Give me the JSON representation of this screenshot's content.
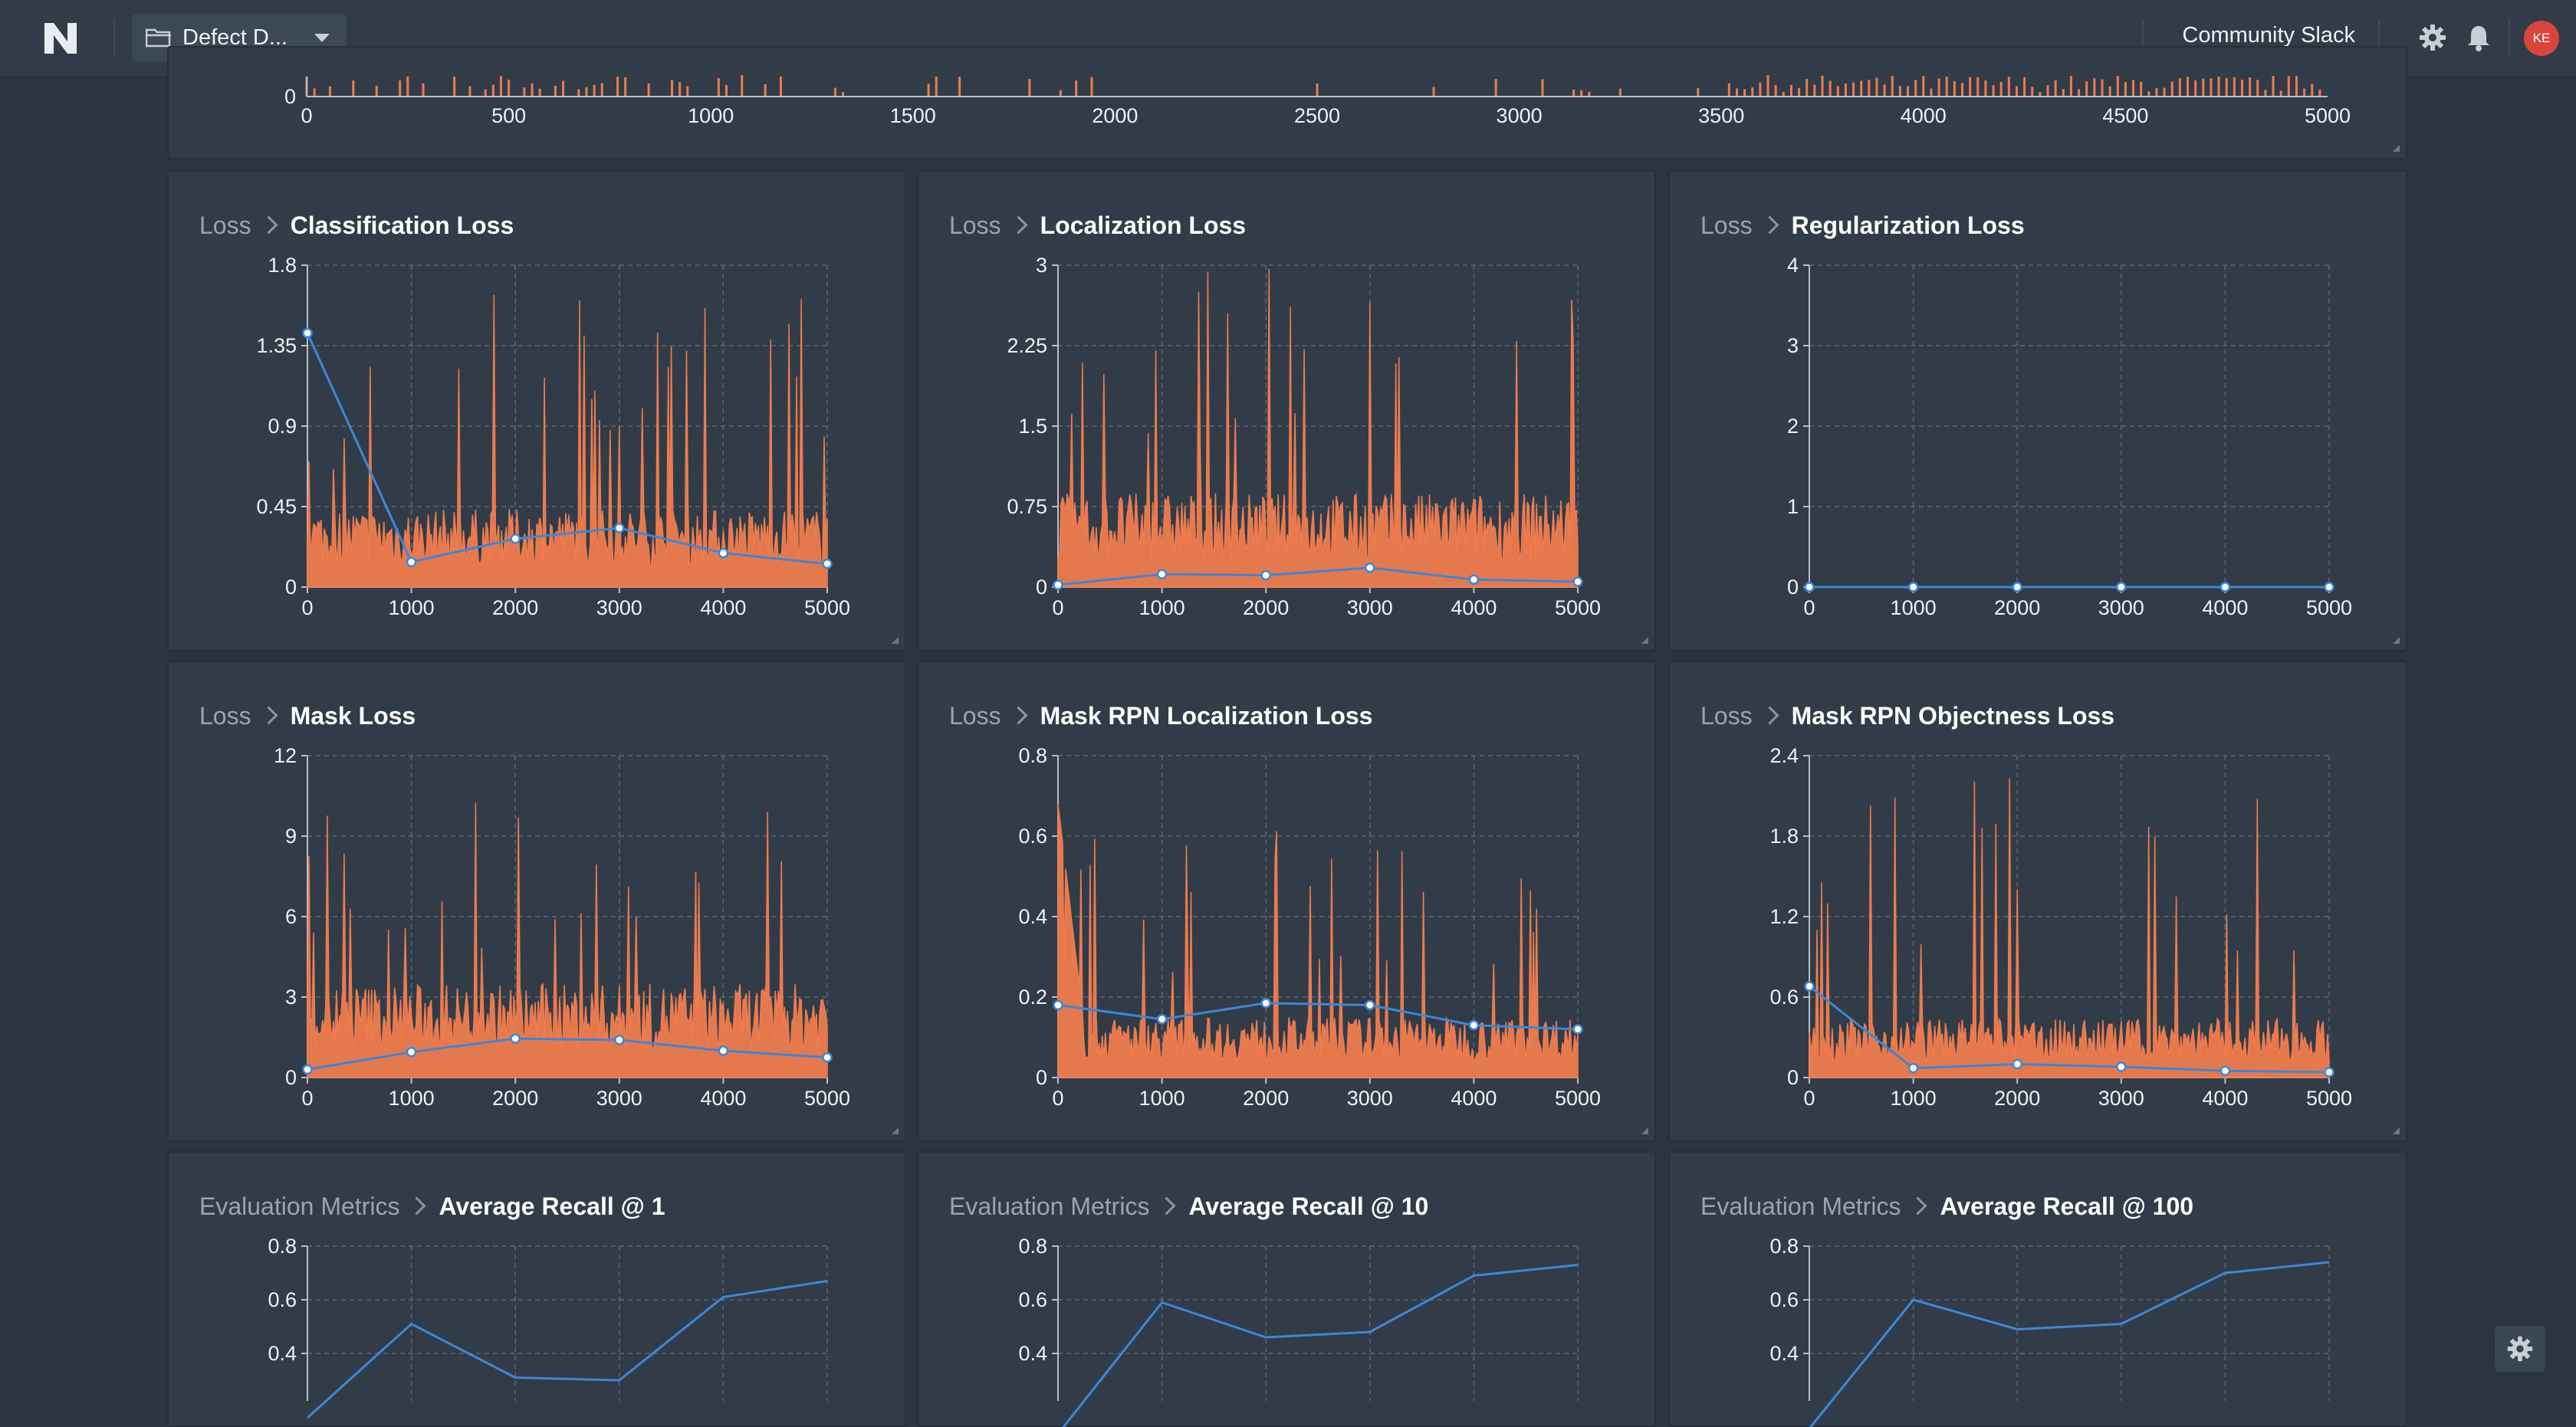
{
  "app": {
    "project_name": "Defect D...",
    "community_link": "Community Slack",
    "avatar_initials": "KE",
    "accent_color": "#ef7c4f",
    "series_color": "#3f86d6"
  },
  "top_chart": {
    "x_ticks": [
      "0",
      "500",
      "1000",
      "1500",
      "2000",
      "2500",
      "3000",
      "3500",
      "4000",
      "4500",
      "5000"
    ],
    "y_ticks": [
      "0"
    ]
  },
  "panels": [
    {
      "group": "Loss",
      "metric": "Classification Loss",
      "y_ticks": [
        "1.8",
        "1.35",
        "0.9",
        "0.45",
        "0"
      ],
      "x_ticks": [
        "0",
        "1000",
        "2000",
        "3000",
        "4000",
        "5000"
      ]
    },
    {
      "group": "Loss",
      "metric": "Localization Loss",
      "y_ticks": [
        "3",
        "2.25",
        "1.5",
        "0.75",
        "0"
      ],
      "x_ticks": [
        "0",
        "1000",
        "2000",
        "3000",
        "4000",
        "5000"
      ]
    },
    {
      "group": "Loss",
      "metric": "Regularization Loss",
      "y_ticks": [
        "4",
        "3",
        "2",
        "1",
        "0"
      ],
      "x_ticks": [
        "0",
        "1000",
        "2000",
        "3000",
        "4000",
        "5000"
      ]
    },
    {
      "group": "Loss",
      "metric": "Mask Loss",
      "y_ticks": [
        "12",
        "9",
        "6",
        "3",
        "0"
      ],
      "x_ticks": [
        "0",
        "1000",
        "2000",
        "3000",
        "4000",
        "5000"
      ]
    },
    {
      "group": "Loss",
      "metric": "Mask RPN Localization Loss",
      "y_ticks": [
        "0.8",
        "0.6",
        "0.4",
        "0.2",
        "0"
      ],
      "x_ticks": [
        "0",
        "1000",
        "2000",
        "3000",
        "4000",
        "5000"
      ]
    },
    {
      "group": "Loss",
      "metric": "Mask RPN Objectness Loss",
      "y_ticks": [
        "2.4",
        "1.8",
        "1.2",
        "0.6",
        "0"
      ],
      "x_ticks": [
        "0",
        "1000",
        "2000",
        "3000",
        "4000",
        "5000"
      ]
    },
    {
      "group": "Evaluation Metrics",
      "metric": "Average Recall @ 1",
      "y_ticks": [
        "0.8",
        "0.6",
        "0.4"
      ],
      "x_ticks": []
    },
    {
      "group": "Evaluation Metrics",
      "metric": "Average Recall @ 10",
      "y_ticks": [
        "0.8",
        "0.6",
        "0.4"
      ],
      "x_ticks": []
    },
    {
      "group": "Evaluation Metrics",
      "metric": "Average Recall @ 100",
      "y_ticks": [
        "0.8",
        "0.6",
        "0.4"
      ],
      "x_ticks": []
    }
  ],
  "chart_data": [
    {
      "type": "area",
      "x": [
        0,
        5000
      ],
      "ylim": [
        0,
        null
      ],
      "xlim": [
        0,
        5000
      ],
      "grid": false
    },
    {
      "type": "line",
      "title": "Classification Loss",
      "xlim": [
        0,
        5000
      ],
      "ylim": [
        0,
        1.8
      ],
      "grid": true,
      "x": [
        0,
        1000,
        2000,
        3000,
        4000,
        5000
      ],
      "series": [
        {
          "values": [
            1.42,
            0.14,
            0.27,
            0.33,
            0.19,
            0.13
          ]
        }
      ],
      "raw_peak": 1.65,
      "raw_level": 0.35
    },
    {
      "type": "line",
      "title": "Localization Loss",
      "xlim": [
        0,
        5000
      ],
      "ylim": [
        0,
        3
      ],
      "grid": true,
      "x": [
        0,
        1000,
        2000,
        3000,
        4000,
        5000
      ],
      "series": [
        {
          "values": [
            0.02,
            0.12,
            0.11,
            0.18,
            0.07,
            0.05
          ]
        }
      ],
      "raw_peak": 3.0,
      "raw_level": 0.7
    },
    {
      "type": "line",
      "title": "Regularization Loss",
      "xlim": [
        0,
        5000
      ],
      "ylim": [
        0,
        4
      ],
      "grid": true,
      "x": [
        0,
        1000,
        2000,
        3000,
        4000,
        5000
      ],
      "series": [
        {
          "values": [
            0,
            0,
            0,
            0,
            0,
            0
          ]
        }
      ]
    },
    {
      "type": "line",
      "title": "Mask Loss",
      "xlim": [
        0,
        5000
      ],
      "ylim": [
        0,
        12
      ],
      "grid": true,
      "x": [
        0,
        1000,
        2000,
        3000,
        4000,
        5000
      ],
      "series": [
        {
          "values": [
            0.3,
            0.95,
            1.45,
            1.4,
            1.0,
            0.75
          ]
        }
      ],
      "raw_peak": 10.8,
      "raw_level": 2.8
    },
    {
      "type": "line",
      "title": "Mask RPN Localization Loss",
      "xlim": [
        0,
        5000
      ],
      "ylim": [
        0,
        0.8
      ],
      "grid": true,
      "x": [
        0,
        1000,
        2000,
        3000,
        4000,
        5000
      ],
      "series": [
        {
          "values": [
            0.18,
            0.145,
            0.185,
            0.18,
            0.13,
            0.12
          ]
        }
      ],
      "raw_peak": 0.62,
      "raw_level": 0.12
    },
    {
      "type": "line",
      "title": "Mask RPN Objectness Loss",
      "xlim": [
        0,
        5000
      ],
      "ylim": [
        0,
        2.4
      ],
      "grid": true,
      "x": [
        0,
        1000,
        2000,
        3000,
        4000,
        5000
      ],
      "series": [
        {
          "values": [
            0.68,
            0.07,
            0.1,
            0.08,
            0.05,
            0.04
          ]
        }
      ],
      "raw_peak": 2.3,
      "raw_level": 0.35
    },
    {
      "type": "line",
      "title": "Average Recall @ 1",
      "ylim": [
        0.2,
        0.8
      ],
      "grid": true,
      "x": [
        0,
        1000,
        2000,
        3000,
        4000,
        5000
      ],
      "series": [
        {
          "values": [
            0.16,
            0.51,
            0.31,
            0.3,
            0.61,
            0.67
          ]
        }
      ]
    },
    {
      "type": "line",
      "title": "Average Recall @ 10",
      "ylim": [
        0.2,
        0.8
      ],
      "grid": true,
      "x": [
        0,
        1000,
        2000,
        3000,
        4000,
        5000
      ],
      "series": [
        {
          "values": [
            0.1,
            0.59,
            0.46,
            0.48,
            0.69,
            0.73
          ]
        }
      ]
    },
    {
      "type": "line",
      "title": "Average Recall @ 100",
      "ylim": [
        0.2,
        0.8
      ],
      "grid": true,
      "x": [
        0,
        1000,
        2000,
        3000,
        4000,
        5000
      ],
      "series": [
        {
          "values": [
            0.12,
            0.6,
            0.49,
            0.51,
            0.7,
            0.74
          ]
        }
      ]
    }
  ]
}
